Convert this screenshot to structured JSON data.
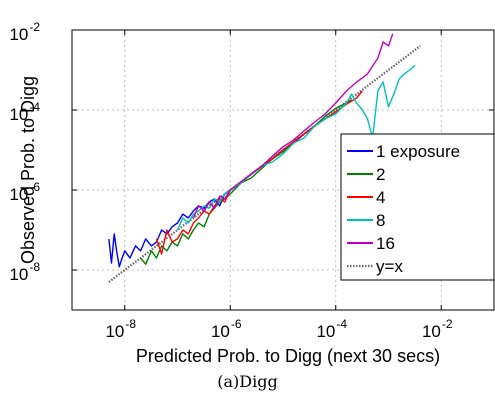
{
  "caption": "(a)Digg",
  "chart_data": {
    "type": "line",
    "title": "",
    "xlabel": "Predicted Prob. to Digg  (next 30 secs)",
    "ylabel": "Observed Prob. to Digg",
    "xscale": "log",
    "yscale": "log",
    "xlim": [
      1e-09,
      0.1
    ],
    "ylim": [
      1e-09,
      0.01
    ],
    "x_ticks": [
      1e-08,
      1e-06,
      0.0001,
      0.01
    ],
    "y_ticks": [
      1e-08,
      1e-06,
      0.0001,
      0.01
    ],
    "x_tick_labels": [
      {
        "base": "10",
        "exp": "-8"
      },
      {
        "base": "10",
        "exp": "-6"
      },
      {
        "base": "10",
        "exp": "-4"
      },
      {
        "base": "10",
        "exp": "-2"
      }
    ],
    "y_tick_labels": [
      {
        "base": "10",
        "exp": "-8"
      },
      {
        "base": "10",
        "exp": "-6"
      },
      {
        "base": "10",
        "exp": "-4"
      },
      {
        "base": "10",
        "exp": "-2"
      }
    ],
    "grid": true,
    "legend_position": "bottom-right",
    "series": [
      {
        "name": "1 exposure",
        "color": "#0000ff",
        "style": "solid",
        "x": [
          5e-09,
          5.6e-09,
          6.3e-09,
          7e-09,
          7.9e-09,
          8.9e-09,
          1e-08,
          1.26e-08,
          1.6e-08,
          2e-08,
          2.5e-08,
          3.2e-08,
          4e-08,
          5e-08,
          6.3e-08,
          7.9e-08,
          1e-07,
          1.26e-07,
          1.6e-07,
          2e-07,
          2.5e-07,
          3.2e-07,
          4e-07,
          5e-07,
          6.3e-07,
          7.9e-07,
          1e-06,
          1.6e-06,
          2.5e-06,
          4e-06,
          6.3e-06,
          1e-05,
          1.6e-05,
          2.5e-05,
          4e-05,
          6.3e-05,
          0.0001
        ],
        "y": [
          6e-08,
          1.5e-08,
          8e-08,
          3e-08,
          1.2e-08,
          2e-08,
          3e-08,
          2e-08,
          4e-08,
          3e-08,
          6e-08,
          4e-08,
          5e-08,
          1e-07,
          8e-08,
          1.2e-07,
          1.5e-07,
          2.5e-07,
          2e-07,
          3e-07,
          4e-07,
          3.5e-07,
          5e-07,
          6e-07,
          4e-07,
          8e-07,
          1e-06,
          1.5e-06,
          2.5e-06,
          4e-06,
          6e-06,
          1e-05,
          1.5e-05,
          2.5e-05,
          4e-05,
          6e-05,
          9e-05
        ]
      },
      {
        "name": "2",
        "color": "#008000",
        "style": "solid",
        "x": [
          2e-08,
          2.5e-08,
          3.2e-08,
          4e-08,
          5e-08,
          6.3e-08,
          7.9e-08,
          1e-07,
          1.26e-07,
          1.6e-07,
          2e-07,
          2.5e-07,
          3.2e-07,
          4e-07,
          5e-07,
          6.3e-07,
          7.9e-07,
          1e-06,
          1.6e-06,
          2.5e-06,
          4e-06,
          6.3e-06,
          1e-05,
          1.6e-05,
          2.5e-05,
          4e-05,
          6.3e-05,
          0.0001,
          0.00016,
          0.0002
        ],
        "y": [
          2e-08,
          1.4e-08,
          3e-08,
          2e-08,
          4e-08,
          3e-08,
          5e-08,
          4e-08,
          8e-08,
          6e-08,
          1e-07,
          1.5e-07,
          1.2e-07,
          2.5e-07,
          3.5e-07,
          5e-07,
          6e-07,
          8e-07,
          1.5e-06,
          2e-06,
          3.5e-06,
          6e-06,
          9e-06,
          1.6e-05,
          2.5e-05,
          4e-05,
          7e-05,
          0.00011,
          0.00015,
          0.00018
        ]
      },
      {
        "name": "4",
        "color": "#ff0000",
        "style": "solid",
        "x": [
          4e-08,
          5e-08,
          6.3e-08,
          7.9e-08,
          1e-07,
          1.26e-07,
          1.6e-07,
          2e-07,
          2.5e-07,
          3.2e-07,
          4e-07,
          5e-07,
          6.3e-07,
          7.9e-07,
          1e-06,
          1.6e-06,
          2.5e-06,
          4e-06,
          6.3e-06,
          1e-05,
          1.6e-05,
          2.5e-05,
          4e-05,
          6.3e-05,
          0.0001,
          0.00016,
          0.00025,
          0.00032
        ],
        "y": [
          6e-08,
          2.5e-08,
          1e-07,
          5e-08,
          6e-08,
          1e-07,
          8e-08,
          1.5e-07,
          2e-07,
          3e-07,
          2.5e-07,
          4e-07,
          6e-07,
          5e-07,
          1e-06,
          1.5e-06,
          2.5e-06,
          4e-06,
          6e-06,
          1e-05,
          1.6e-05,
          2.5e-05,
          4e-05,
          6e-05,
          9e-05,
          0.00014,
          0.0002,
          0.0003
        ]
      },
      {
        "name": "8",
        "color": "#00c0c0",
        "style": "solid",
        "x": [
          1e-07,
          1.26e-07,
          1.6e-07,
          2e-07,
          2.5e-07,
          3.2e-07,
          4e-07,
          5e-07,
          6.3e-07,
          7.9e-07,
          1e-06,
          1.6e-06,
          2.5e-06,
          4e-06,
          6.3e-06,
          1e-05,
          1.6e-05,
          2.5e-05,
          4e-05,
          6.3e-05,
          0.0001,
          0.00016,
          0.0002,
          0.00025,
          0.00032,
          0.0004,
          0.0005,
          0.00063,
          0.00079,
          0.001,
          0.00126,
          0.0016,
          0.002,
          0.0025,
          0.0032
        ],
        "y": [
          1e-07,
          2e-07,
          1.5e-07,
          2.5e-07,
          3e-07,
          4e-07,
          3.5e-07,
          6e-07,
          5e-07,
          8e-07,
          1e-06,
          1.5e-06,
          2.5e-06,
          4e-06,
          5e-06,
          8e-06,
          1.5e-05,
          2e-05,
          4e-05,
          6e-05,
          8e-05,
          0.00015,
          0.00025,
          0.00015,
          0.0001,
          6e-05,
          2e-05,
          0.0003,
          0.0005,
          0.00012,
          0.00025,
          0.0006,
          0.0008,
          0.001,
          0.0013
        ]
      },
      {
        "name": "16",
        "color": "#c000c0",
        "style": "solid",
        "x": [
          2e-07,
          2.5e-07,
          3.2e-07,
          4e-07,
          5e-07,
          6.3e-07,
          7.9e-07,
          1e-06,
          1.6e-06,
          2.5e-06,
          4e-06,
          6.3e-06,
          1e-05,
          1.6e-05,
          2.5e-05,
          4e-05,
          6.3e-05,
          0.0001,
          0.00016,
          0.00025,
          0.0004,
          0.00063,
          0.00079,
          0.001,
          0.0012
        ],
        "y": [
          2e-07,
          4e-07,
          3e-07,
          5e-07,
          3.5e-07,
          7e-07,
          6e-07,
          1e-06,
          1.6e-06,
          2.5e-06,
          4e-06,
          7e-06,
          1.2e-05,
          1.8e-05,
          3e-05,
          5e-05,
          8e-05,
          0.00015,
          0.0003,
          0.0005,
          0.0008,
          0.002,
          0.005,
          0.004,
          0.008
        ]
      },
      {
        "name": "y=x",
        "color": "#666666",
        "style": "dotted",
        "x": [
          5e-09,
          0.004
        ],
        "y": [
          5e-09,
          0.004
        ]
      }
    ]
  }
}
